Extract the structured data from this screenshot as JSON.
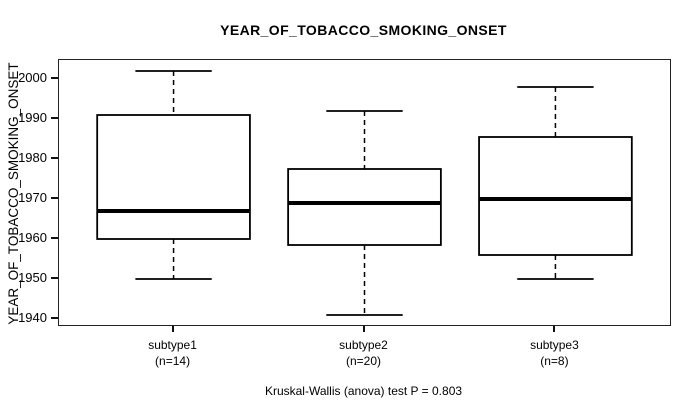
{
  "chart_data": {
    "type": "boxplot",
    "title": "YEAR_OF_TOBACCO_SMOKING_ONSET",
    "ylabel": "YEAR_OF_TOBACCO_SMOKING_ONSET",
    "xlabel": "",
    "ylim": [
      1938.5,
      2004.75
    ],
    "yticks": [
      1940,
      1950,
      1960,
      1970,
      1980,
      1990,
      2000
    ],
    "grid": false,
    "legend": "none",
    "groups": [
      {
        "label": "subtype1",
        "n_label": "(n=14)",
        "n": 14,
        "whisker_low": 1950,
        "q1": 1960,
        "median": 1967,
        "q3": 1991,
        "whisker_high": 2002
      },
      {
        "label": "subtype2",
        "n_label": "(n=20)",
        "n": 20,
        "whisker_low": 1941,
        "q1": 1958.5,
        "median": 1969,
        "q3": 1977.5,
        "whisker_high": 1992
      },
      {
        "label": "subtype3",
        "n_label": "(n=8)",
        "n": 8,
        "whisker_low": 1950,
        "q1": 1956,
        "median": 1970,
        "q3": 1985.5,
        "whisker_high": 1998
      }
    ]
  },
  "caption": "Kruskal-Wallis (anova) test P = 0.803",
  "colors": {
    "line": "#000000",
    "background": "#ffffff",
    "box_fill": "#ffffff"
  }
}
